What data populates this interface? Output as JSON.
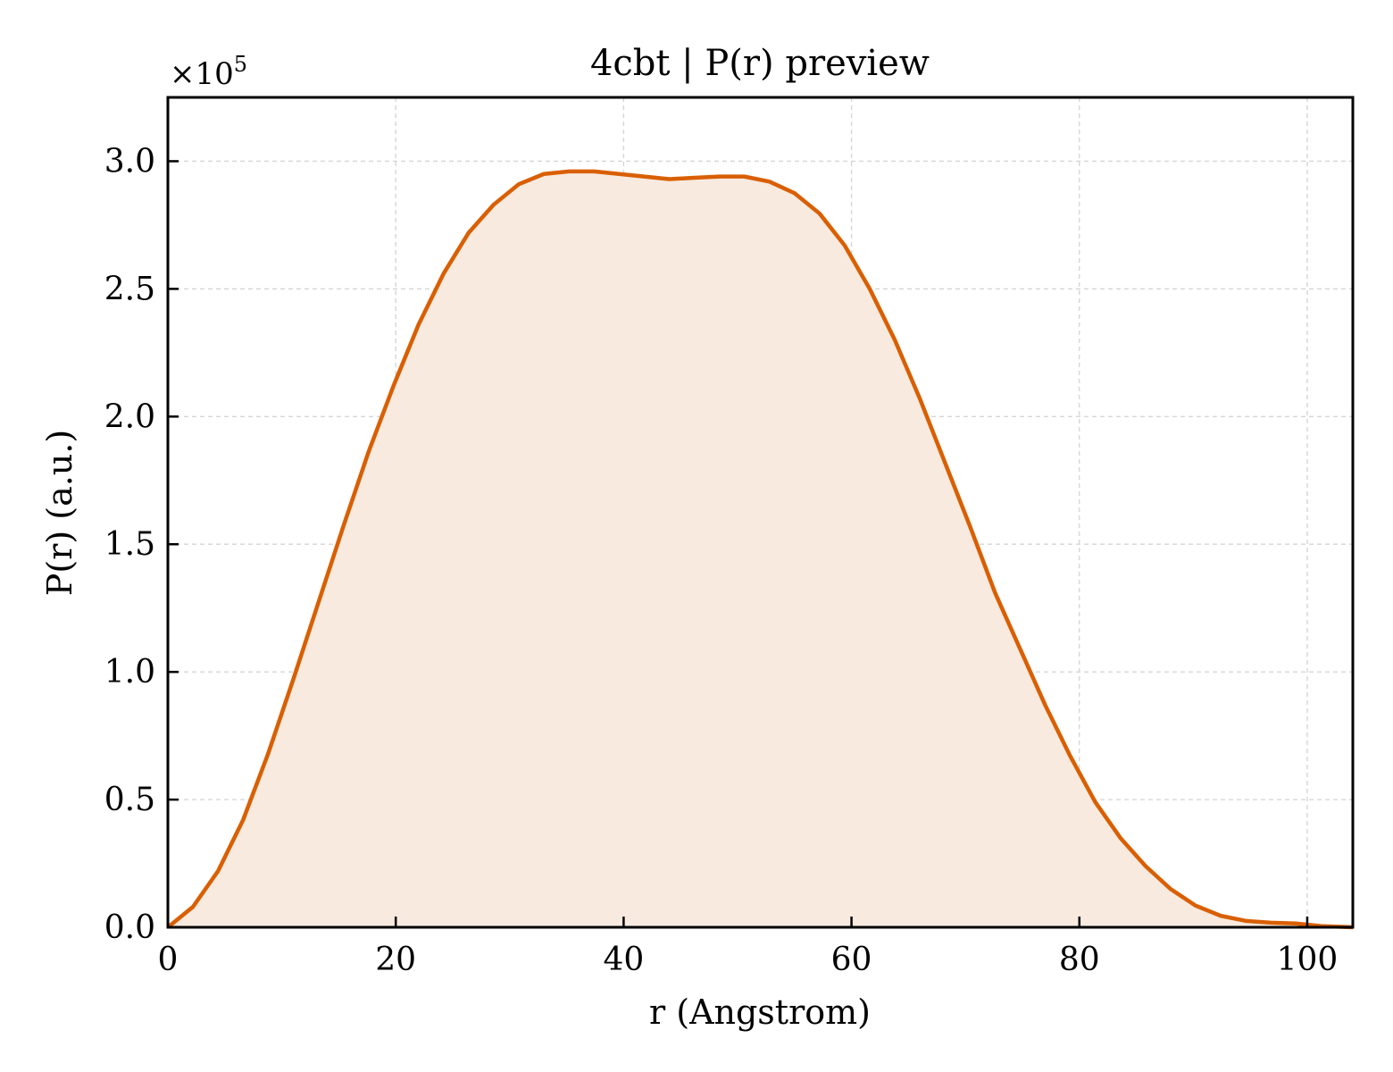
{
  "chart_data": {
    "type": "area",
    "title": "4cbt | P(r) preview",
    "xlabel": "r (Angstrom)",
    "ylabel": "P(r) (a.u.)",
    "y_scale_label": "×10",
    "y_scale_exponent": "5",
    "xlim": [
      0,
      104
    ],
    "ylim": [
      0,
      3.25
    ],
    "x_ticks": [
      0,
      20,
      40,
      60,
      80,
      100
    ],
    "x_tick_labels": [
      "0",
      "20",
      "40",
      "60",
      "80",
      "100"
    ],
    "y_ticks": [
      0,
      0.5,
      1.0,
      1.5,
      2.0,
      2.5,
      3.0
    ],
    "y_tick_labels": [
      "0.0",
      "0.5",
      "1.0",
      "1.5",
      "2.0",
      "2.5",
      "3.0"
    ],
    "grid": true,
    "line_color": "#d95f02",
    "fill_color": "#f8eadf",
    "series": [
      {
        "x": [
          0,
          2.2,
          4.4,
          6.6,
          8.8,
          11.0,
          13.2,
          15.4,
          17.6,
          19.8,
          22.0,
          24.2,
          26.4,
          28.6,
          30.8,
          33.0,
          35.2,
          37.4,
          39.6,
          41.8,
          44.0,
          46.2,
          48.4,
          50.6,
          52.8,
          55.0,
          57.2,
          59.4,
          61.6,
          63.8,
          66.0,
          68.2,
          70.4,
          72.6,
          74.8,
          77.0,
          79.2,
          81.4,
          83.6,
          85.8,
          88.0,
          90.2,
          92.4,
          94.6,
          96.8,
          99.0,
          101.2,
          104.0
        ],
        "values": [
          0.0,
          0.08,
          0.22,
          0.42,
          0.68,
          0.97,
          1.27,
          1.57,
          1.86,
          2.12,
          2.36,
          2.56,
          2.72,
          2.83,
          2.91,
          2.95,
          2.96,
          2.96,
          2.95,
          2.94,
          2.93,
          2.935,
          2.94,
          2.94,
          2.92,
          2.875,
          2.795,
          2.67,
          2.5,
          2.3,
          2.07,
          1.82,
          1.57,
          1.31,
          1.09,
          0.87,
          0.67,
          0.49,
          0.35,
          0.24,
          0.15,
          0.085,
          0.045,
          0.025,
          0.018,
          0.015,
          0.005,
          0.0
        ]
      }
    ]
  }
}
